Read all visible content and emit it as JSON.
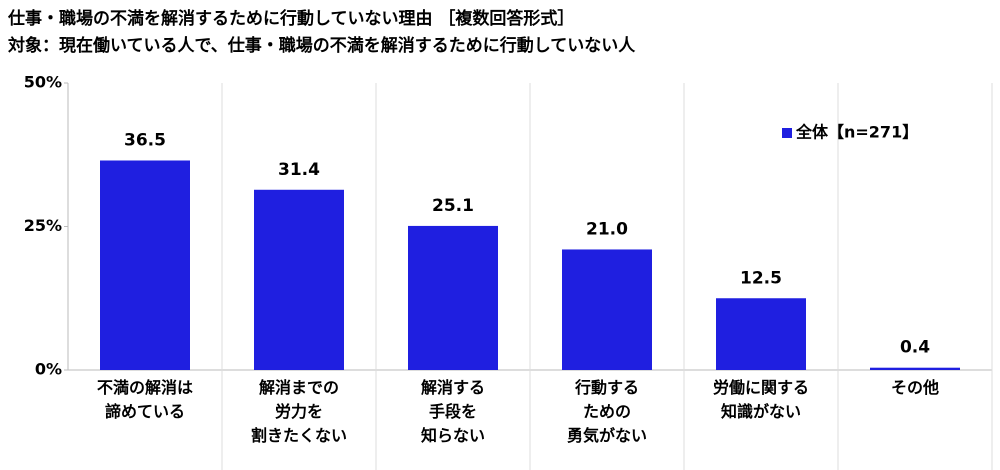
{
  "chart_data": {
    "type": "bar",
    "title": "仕事・職場の不満を解消するために行動していない理由 ［複数回答形式］",
    "subtitle": "対象：現在働いている人で、仕事・職場の不満を解消するために行動していない人",
    "categories": [
      "不満の解消は\n諦めている",
      "解消までの\n労力を\n割きたくない",
      "解消する\n手段を\n知らない",
      "行動する\nための\n勇気がない",
      "労働に関する\n知識がない",
      "その他"
    ],
    "series": [
      {
        "name": "全体【n=271】",
        "color": "#1f1fe0",
        "values": [
          36.5,
          31.4,
          25.1,
          21.0,
          12.5,
          0.4
        ],
        "value_labels": [
          "36.5",
          "31.4",
          "25.1",
          "21.0",
          "12.5",
          "0.4"
        ]
      }
    ],
    "ylim": [
      0,
      50
    ],
    "yticks": [
      {
        "value": 0,
        "label": "0%"
      },
      {
        "value": 25,
        "label": "25%"
      },
      {
        "value": 50,
        "label": "50%"
      }
    ],
    "legend": "upper right"
  }
}
